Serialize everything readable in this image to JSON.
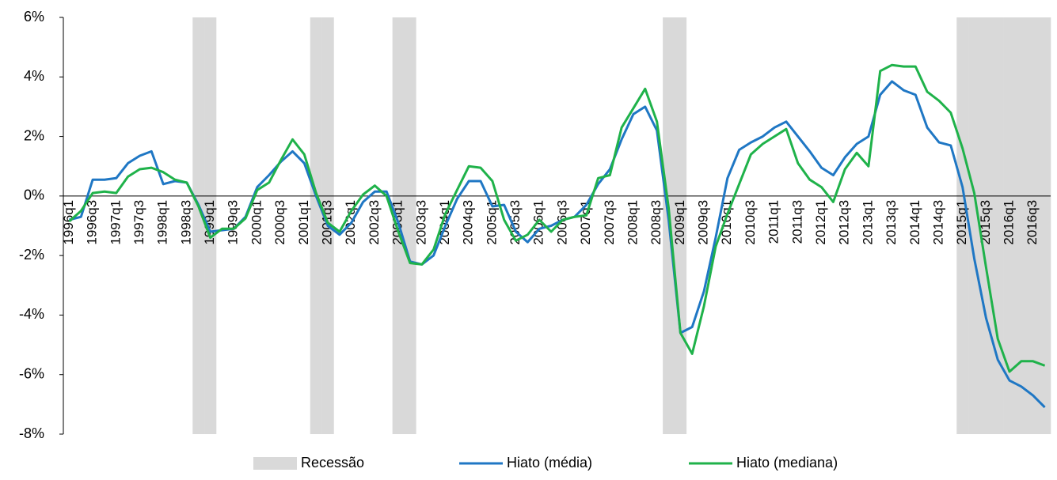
{
  "chart_data": {
    "type": "line",
    "categories": [
      "1996q1",
      null,
      "1996q3",
      null,
      "1997q1",
      null,
      "1997q3",
      null,
      "1998q1",
      null,
      "1998q3",
      null,
      "1999q1",
      null,
      "1999q3",
      null,
      "2000q1",
      null,
      "2000q3",
      null,
      "2001q1",
      null,
      "2001q3",
      null,
      "2002q1",
      null,
      "2002q3",
      null,
      "2003q1",
      null,
      "2003q3",
      null,
      "2004q1",
      null,
      "2004q3",
      null,
      "2005q1",
      null,
      "2005q3",
      null,
      "2006q1",
      null,
      "2006q3",
      null,
      "2007q1",
      null,
      "2007q3",
      null,
      "2008q1",
      null,
      "2008q3",
      null,
      "2009q1",
      null,
      "2009q3",
      null,
      "2010q1",
      null,
      "2010q3",
      null,
      "2011q1",
      null,
      "2011q3",
      null,
      "2012q1",
      null,
      "2012q3",
      null,
      "2013q1",
      null,
      "2013q3",
      null,
      "2014q1",
      null,
      "2014q3",
      null,
      "2015q1",
      null,
      "2015q3",
      null,
      "2016q1",
      null,
      "2016q3",
      null
    ],
    "series": [
      {
        "name": "Recessão",
        "type": "bar",
        "color": "#d9d9d9",
        "values": [
          null,
          null,
          null,
          null,
          null,
          null,
          null,
          null,
          null,
          null,
          null,
          6,
          6,
          null,
          null,
          null,
          null,
          null,
          null,
          null,
          null,
          6,
          6,
          null,
          null,
          null,
          null,
          null,
          6,
          6,
          null,
          null,
          null,
          null,
          null,
          null,
          null,
          null,
          null,
          null,
          null,
          null,
          null,
          null,
          null,
          null,
          null,
          null,
          null,
          null,
          null,
          6,
          6,
          null,
          null,
          null,
          null,
          null,
          null,
          null,
          null,
          null,
          null,
          null,
          null,
          null,
          null,
          null,
          null,
          null,
          null,
          null,
          null,
          null,
          null,
          null,
          6,
          6,
          6,
          6,
          6,
          6,
          6,
          6
        ]
      },
      {
        "name": "Hiato (média)",
        "type": "line",
        "color": "#1f77c4",
        "values": [
          -0.8,
          -0.7,
          0.55,
          0.55,
          0.6,
          1.1,
          1.35,
          1.5,
          0.4,
          0.5,
          0.45,
          -0.3,
          -1.2,
          -1.15,
          -1.1,
          -0.7,
          0.3,
          0.7,
          1.15,
          1.5,
          1.1,
          0.0,
          -1.0,
          -1.3,
          -0.9,
          -0.2,
          0.15,
          0.15,
          -0.9,
          -2.2,
          -2.3,
          -2.0,
          -1.0,
          -0.1,
          0.5,
          0.5,
          -0.35,
          -0.3,
          -1.2,
          -1.55,
          -1.1,
          -1.0,
          -0.8,
          -0.7,
          -0.3,
          0.4,
          0.9,
          1.9,
          2.75,
          3.0,
          2.2,
          -0.8,
          -4.6,
          -4.4,
          -3.2,
          -1.4,
          0.6,
          1.55,
          1.8,
          2.0,
          2.3,
          2.5,
          2.0,
          1.5,
          0.95,
          0.7,
          1.3,
          1.75,
          2.0,
          3.4,
          3.85,
          3.55,
          3.4,
          2.3,
          1.8,
          1.7,
          0.3,
          -2.1,
          -4.1,
          -5.5,
          -6.2,
          -6.4,
          -6.7,
          -7.1
        ]
      },
      {
        "name": "Hiato (mediana)",
        "type": "line",
        "color": "#1fb24a",
        "values": [
          -0.85,
          -0.5,
          0.1,
          0.15,
          0.1,
          0.65,
          0.9,
          0.95,
          0.8,
          0.55,
          0.45,
          -0.35,
          -1.4,
          -1.1,
          -1.1,
          -0.75,
          0.2,
          0.45,
          1.2,
          1.9,
          1.4,
          0.1,
          -0.9,
          -1.2,
          -0.5,
          0.05,
          0.35,
          0.0,
          -1.2,
          -2.25,
          -2.3,
          -1.8,
          -0.6,
          0.2,
          1.0,
          0.95,
          0.5,
          -0.8,
          -1.5,
          -1.3,
          -0.8,
          -1.2,
          -0.8,
          -0.7,
          -0.65,
          0.6,
          0.7,
          2.3,
          2.95,
          3.6,
          2.5,
          -0.4,
          -4.6,
          -5.3,
          -3.7,
          -1.7,
          -0.6,
          0.4,
          1.4,
          1.75,
          2.0,
          2.25,
          1.1,
          0.55,
          0.3,
          -0.2,
          0.9,
          1.45,
          1.0,
          4.2,
          4.4,
          4.35,
          4.35,
          3.5,
          3.2,
          2.8,
          1.6,
          0.1,
          -2.4,
          -4.8,
          -5.9,
          -5.55,
          -5.55,
          -5.7
        ]
      }
    ],
    "ylim": [
      -8,
      6
    ],
    "yticks": [
      {
        "value": -8,
        "label": "-8%"
      },
      {
        "value": -6,
        "label": "-6%"
      },
      {
        "value": -4,
        "label": "-4%"
      },
      {
        "value": -2,
        "label": "-2%"
      },
      {
        "value": 0,
        "label": "0%"
      },
      {
        "value": 2,
        "label": "2%"
      },
      {
        "value": 4,
        "label": "4%"
      },
      {
        "value": 6,
        "label": "6%"
      }
    ],
    "legend": "bottom"
  }
}
